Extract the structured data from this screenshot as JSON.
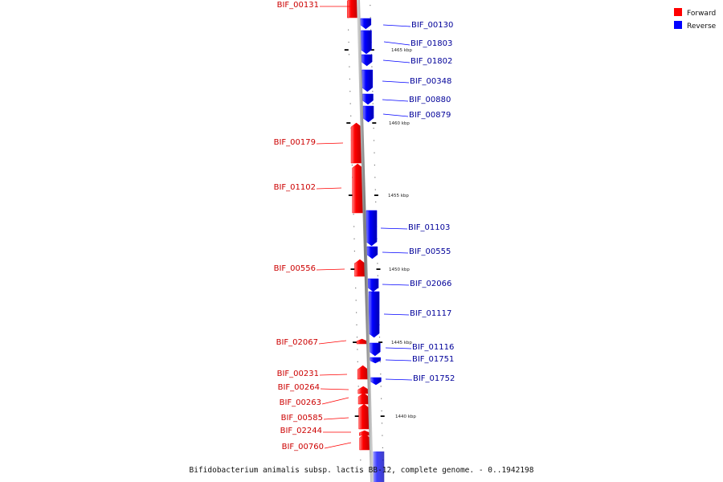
{
  "caption": "Bifidobacterium animalis subsp. lactis BB-12, complete genome. - 0..1942198",
  "legend": [
    {
      "label": "Forward",
      "color": "#ff0000"
    },
    {
      "label": "Reverse",
      "color": "#0000ff"
    }
  ],
  "colors": {
    "forward": "#ff0000",
    "reverse": "#0000ff",
    "axis": "#888888",
    "forward_label": "#cc0000",
    "reverse_label": "#000099"
  },
  "chart_data": {
    "type": "gene-map",
    "axis_ticks": [
      "1465 kbp",
      "1460 kbp",
      "1455 kbp",
      "1450 kbp",
      "1445 kbp",
      "1440 kbp"
    ],
    "tick_positions_kbp": [
      1465,
      1460,
      1455,
      1450,
      1445,
      1440
    ],
    "genes": [
      {
        "label": "BIF_00131",
        "strand": "forward"
      },
      {
        "label": "BIF_00130",
        "strand": "reverse"
      },
      {
        "label": "BIF_01803",
        "strand": "reverse"
      },
      {
        "label": "BIF_01802",
        "strand": "reverse"
      },
      {
        "label": "BIF_00348",
        "strand": "reverse"
      },
      {
        "label": "BIF_00880",
        "strand": "reverse"
      },
      {
        "label": "BIF_00879",
        "strand": "reverse"
      },
      {
        "label": "BIF_00179",
        "strand": "forward"
      },
      {
        "label": "BIF_01102",
        "strand": "forward"
      },
      {
        "label": "BIF_01103",
        "strand": "reverse"
      },
      {
        "label": "BIF_00555",
        "strand": "reverse"
      },
      {
        "label": "BIF_00556",
        "strand": "forward"
      },
      {
        "label": "BIF_02066",
        "strand": "reverse"
      },
      {
        "label": "BIF_01117",
        "strand": "reverse"
      },
      {
        "label": "BIF_02067",
        "strand": "forward"
      },
      {
        "label": "BIF_01116",
        "strand": "reverse"
      },
      {
        "label": "BIF_01751",
        "strand": "reverse"
      },
      {
        "label": "BIF_00231",
        "strand": "forward"
      },
      {
        "label": "BIF_01752",
        "strand": "reverse"
      },
      {
        "label": "BIF_00264",
        "strand": "forward"
      },
      {
        "label": "BIF_00263",
        "strand": "forward"
      },
      {
        "label": "BIF_00585",
        "strand": "forward"
      },
      {
        "label": "BIF_02244",
        "strand": "forward"
      },
      {
        "label": "BIF_00760",
        "strand": "forward"
      }
    ]
  }
}
